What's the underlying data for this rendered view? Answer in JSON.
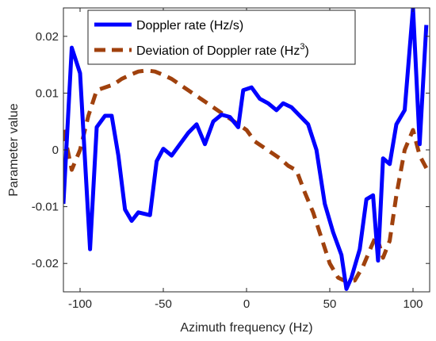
{
  "chart_data": {
    "type": "line",
    "title": "",
    "xlabel": "Azimuth frequency (Hz)",
    "ylabel": "Parameter value",
    "xlim": [
      -110,
      110
    ],
    "ylim": [
      -0.025,
      0.025
    ],
    "xticks": [
      -100,
      -50,
      0,
      50,
      100
    ],
    "xtick_labels": [
      "-100",
      "-50",
      "0",
      "50",
      "100"
    ],
    "yticks": [
      -0.02,
      -0.01,
      0,
      0.01,
      0.02
    ],
    "ytick_labels": [
      "-0.02",
      "-0.01",
      "0",
      "0.01",
      "0.02"
    ],
    "grid": false,
    "legend_position": "top",
    "series": [
      {
        "name": "Doppler rate (Hz/s)",
        "color": "#0000ff",
        "style": "solid",
        "points": [
          [
            -110,
            -0.0095
          ],
          [
            -105,
            0.018
          ],
          [
            -100,
            0.0135
          ],
          [
            -94,
            -0.0175
          ],
          [
            -90,
            0.004
          ],
          [
            -85,
            0.006
          ],
          [
            -81,
            0.006
          ],
          [
            -77,
            -0.001
          ],
          [
            -73,
            -0.0105
          ],
          [
            -69,
            -0.0125
          ],
          [
            -65,
            -0.011
          ],
          [
            -58,
            -0.0115
          ],
          [
            -54,
            -0.002
          ],
          [
            -50,
            0.0002
          ],
          [
            -45,
            -0.001
          ],
          [
            -40,
            0.001
          ],
          [
            -35,
            0.003
          ],
          [
            -30,
            0.0045
          ],
          [
            -25,
            0.001
          ],
          [
            -20,
            0.005
          ],
          [
            -15,
            0.0062
          ],
          [
            -10,
            0.0058
          ],
          [
            -5,
            0.004
          ],
          [
            -2,
            0.0105
          ],
          [
            3,
            0.011
          ],
          [
            8,
            0.009
          ],
          [
            13,
            0.0082
          ],
          [
            18,
            0.007
          ],
          [
            22,
            0.0082
          ],
          [
            27,
            0.0075
          ],
          [
            32,
            0.006
          ],
          [
            37,
            0.0045
          ],
          [
            42,
            0.0
          ],
          [
            47,
            -0.0095
          ],
          [
            52,
            -0.0145
          ],
          [
            57,
            -0.0185
          ],
          [
            60,
            -0.0245
          ],
          [
            63,
            -0.0225
          ],
          [
            68,
            -0.0175
          ],
          [
            72,
            -0.0087
          ],
          [
            76,
            -0.008
          ],
          [
            79,
            -0.0195
          ],
          [
            82,
            -0.0015
          ],
          [
            86,
            -0.0025
          ],
          [
            90,
            0.0045
          ],
          [
            95,
            0.007
          ],
          [
            100,
            0.025
          ],
          [
            104,
            0.001
          ],
          [
            108,
            0.022
          ]
        ]
      },
      {
        "name": "Deviation of Doppler rate (Hz",
        "name_superscript": "3",
        "name_suffix": ")",
        "color": "#a0410d",
        "style": "dashed",
        "points": [
          [
            -110,
            0.0035
          ],
          [
            -105,
            -0.0035
          ],
          [
            -100,
            0.0
          ],
          [
            -95,
            0.006
          ],
          [
            -90,
            0.0105
          ],
          [
            -85,
            0.011
          ],
          [
            -80,
            0.0115
          ],
          [
            -75,
            0.0125
          ],
          [
            -70,
            0.0132
          ],
          [
            -65,
            0.0138
          ],
          [
            -60,
            0.014
          ],
          [
            -55,
            0.0138
          ],
          [
            -50,
            0.0132
          ],
          [
            -45,
            0.0125
          ],
          [
            -40,
            0.0115
          ],
          [
            -35,
            0.0105
          ],
          [
            -30,
            0.0095
          ],
          [
            -25,
            0.0085
          ],
          [
            -20,
            0.0075
          ],
          [
            -15,
            0.0065
          ],
          [
            -10,
            0.0055
          ],
          [
            -5,
            0.0045
          ],
          [
            0,
            0.0035
          ],
          [
            5,
            0.0015
          ],
          [
            10,
            0.0005
          ],
          [
            15,
            -0.0005
          ],
          [
            20,
            -0.0015
          ],
          [
            25,
            -0.0028
          ],
          [
            30,
            -0.0036
          ],
          [
            35,
            -0.0075
          ],
          [
            40,
            -0.011
          ],
          [
            45,
            -0.0155
          ],
          [
            50,
            -0.02
          ],
          [
            55,
            -0.0225
          ],
          [
            60,
            -0.0232
          ],
          [
            65,
            -0.023
          ],
          [
            70,
            -0.0205
          ],
          [
            75,
            -0.017
          ],
          [
            78,
            -0.015
          ],
          [
            82,
            -0.019
          ],
          [
            86,
            -0.016
          ],
          [
            90,
            -0.008
          ],
          [
            95,
            0.0
          ],
          [
            100,
            0.0035
          ],
          [
            104,
            -0.001
          ],
          [
            108,
            -0.0032
          ]
        ]
      }
    ]
  }
}
